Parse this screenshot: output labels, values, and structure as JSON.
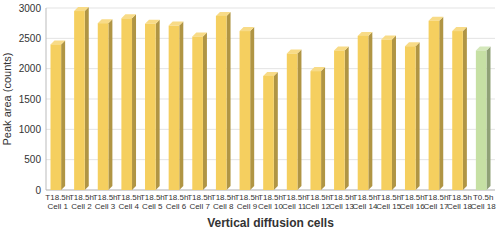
{
  "chart_data": {
    "type": "bar",
    "x_label": "Vertical diffusion cells",
    "y_label": "Peak area (counts)",
    "categories": [
      "T18.5h\nCell 1",
      "T18.5h\nCell 2",
      "T18.5h\nCell 3",
      "T18.5h\nCell 4",
      "T18.5h\nCell 5",
      "T18.5h\nCell 6",
      "T18.5h\nCell 7",
      "T18.5h\nCell 8",
      "T18.5h\nCell 9",
      "T18.5h\nCell 10",
      "T18.5h\nCell 11",
      "T18.5h\nCell 12",
      "T18.5h\nCell 13",
      "T18.5h\nCell 14",
      "T18.5h\nCell 15",
      "T18.5h\nCell 16",
      "T18.5h\nCell 17",
      "T18.5h\nCell 18",
      "T0.5h\nCell 18"
    ],
    "values": [
      2400,
      2950,
      2750,
      2830,
      2740,
      2710,
      2530,
      2870,
      2620,
      1880,
      2250,
      1960,
      2300,
      2540,
      2480,
      2370,
      2790,
      2620,
      2300
    ],
    "colors": [
      "#f5cf5f",
      "#f5cf5f",
      "#f5cf5f",
      "#f5cf5f",
      "#f5cf5f",
      "#f5cf5f",
      "#f5cf5f",
      "#f5cf5f",
      "#f5cf5f",
      "#f5cf5f",
      "#f5cf5f",
      "#f5cf5f",
      "#f5cf5f",
      "#f5cf5f",
      "#f5cf5f",
      "#f5cf5f",
      "#f5cf5f",
      "#f5cf5f",
      "#c6e0a4"
    ],
    "ylim": [
      0,
      3000
    ],
    "yticks": [
      0,
      500,
      1000,
      1500,
      2000,
      2500,
      3000
    ],
    "grid": true
  }
}
